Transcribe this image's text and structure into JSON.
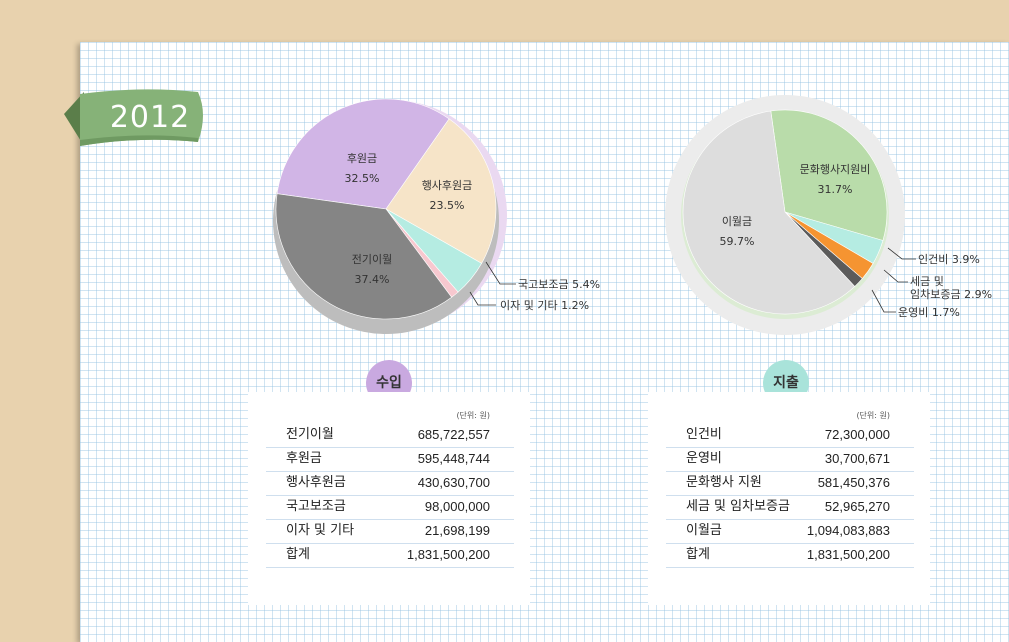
{
  "year": "2012",
  "chart_data": [
    {
      "type": "pie",
      "title": "",
      "slices": [
        {
          "label": "후원금",
          "value": 32.5,
          "display": "32.5%",
          "color": "#d1b5e6"
        },
        {
          "label": "행사후원금",
          "value": 23.5,
          "display": "23.5%",
          "color": "#f6e4c8"
        },
        {
          "label": "국고보조금",
          "value": 5.4,
          "display": "5.4%",
          "color": "#b5ece2"
        },
        {
          "label": "이자 및 기타",
          "value": 1.2,
          "display": "1.2%",
          "color": "#f7c8cf"
        },
        {
          "label": "전기이월",
          "value": 37.4,
          "display": "37.4%",
          "color": "#858585"
        }
      ]
    },
    {
      "type": "pie",
      "title": "",
      "slices": [
        {
          "label": "문화행사지원비",
          "value": 31.7,
          "display": "31.7%",
          "color": "#b9dcaa"
        },
        {
          "label": "인건비",
          "value": 3.9,
          "display": "3.9%",
          "color": "#b5ece2"
        },
        {
          "label": "세금 및 임차보증금",
          "value": 2.9,
          "display": "2.9%",
          "color": "#f59431"
        },
        {
          "label": "운영비",
          "value": 1.7,
          "display": "1.7%",
          "color": "#5b5b5b"
        },
        {
          "label": "이월금",
          "value": 59.7,
          "display": "59.7%",
          "color": "#dddddd"
        }
      ]
    }
  ],
  "income": {
    "badge": "수입",
    "unit": "(단위: 원)",
    "rows": [
      {
        "label": "전기이월",
        "value": "685,722,557"
      },
      {
        "label": "후원금",
        "value": "595,448,744"
      },
      {
        "label": "행사후원금",
        "value": "430,630,700"
      },
      {
        "label": "국고보조금",
        "value": "98,000,000"
      },
      {
        "label": "이자 및 기타",
        "value": "21,698,199"
      },
      {
        "label": "합계",
        "value": "1,831,500,200"
      }
    ]
  },
  "expense": {
    "badge": "지출",
    "unit": "(단위: 원)",
    "rows": [
      {
        "label": "인건비",
        "value": "72,300,000"
      },
      {
        "label": "운영비",
        "value": "30,700,671"
      },
      {
        "label": "문화행사 지원",
        "value": "581,450,376"
      },
      {
        "label": "세금 및 임차보증금",
        "value": "52,965,270"
      },
      {
        "label": "이월금",
        "value": "1,094,083,883"
      },
      {
        "label": "합계",
        "value": "1,831,500,200"
      }
    ]
  },
  "callouts": {
    "income_1": "국고보조금 5.4%",
    "income_2": "이자 및 기타 1.2%",
    "expense_1": "인건비 3.9%",
    "expense_2a": "세금 및",
    "expense_2b": "임차보증금 2.9%",
    "expense_3": "운영비 1.7%"
  }
}
